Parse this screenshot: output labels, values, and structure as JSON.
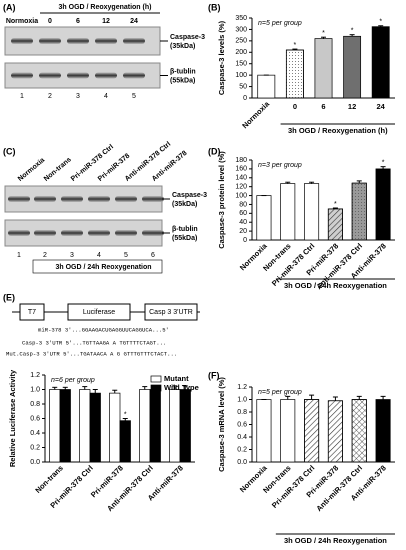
{
  "panel_labels": [
    "(A)",
    "(B)",
    "(C)",
    "(D)",
    "(E)",
    "(F)"
  ],
  "blots": [
    {
      "title": "3h OGD / Reoxygenation (h)",
      "lanes": [
        "Normoxia",
        "0",
        "6",
        "12",
        "24"
      ],
      "lane_numbers": [
        1,
        2,
        3,
        4,
        5
      ],
      "bands": [
        {
          "name": "Caspase-3",
          "size": "(35kDa)"
        },
        {
          "name": "β-tublin",
          "size": "(55kDa)"
        }
      ]
    },
    {
      "lanes": [
        "Normoxia",
        "Non-trans",
        "Pri-miR-378 Ctrl",
        "Pri-miR-378",
        "Anti-miR-378 Ctrl",
        "Anti-miR-378"
      ],
      "lane_numbers": [
        1,
        2,
        3,
        4,
        5,
        6
      ],
      "bands": [
        {
          "name": "Caspase-3",
          "size": "(35kDa)"
        },
        {
          "name": "β-tublin",
          "size": "(55kDa)"
        }
      ],
      "footer": "3h OGD / 24h Reoxygenation"
    }
  ],
  "construct": {
    "elements": [
      "T7",
      "Luciferase",
      "Casp 3 3'UTR"
    ],
    "sequences": [
      "miR-378 3'...GGAAGACUGAGGUUCAGGUCA...5'",
      "Casp-3 3'UTR 5'...TGTTAAGA A TGTTTTCTAGT...",
      "Mut.Casp-3 3'UTR 5'...TGATAACA A G GTTTGTTTCTACT..."
    ]
  },
  "chart_data": [
    {
      "type": "bar",
      "ylabel": "Caspase-3 levels (%)",
      "note": "n=5 per group",
      "xlabel": "3h OGD / Reoxygenation (h)",
      "categories": [
        "Normoxia",
        "0",
        "6",
        "12",
        "24"
      ],
      "values": [
        100,
        210,
        260,
        270,
        312
      ],
      "errors": [
        0,
        4,
        6,
        7,
        4
      ],
      "significance": [
        null,
        "*",
        "*",
        "*",
        "*"
      ],
      "colors": [
        "#ffffff",
        "#ffffff",
        "#c8c8c8",
        "#6f6f6f",
        "#000000"
      ],
      "patterns": [
        "none",
        "dots",
        "none",
        "none",
        "none"
      ],
      "ylim": [
        0,
        350
      ],
      "yticks": [
        0,
        50,
        100,
        150,
        200,
        250,
        300,
        350
      ]
    },
    {
      "type": "bar",
      "ylabel": "Caspase-3 protein level (%)",
      "note": "n=3 per group",
      "xlabel": "3h OGD / 24h Reoxygenation",
      "categories": [
        "Normoxia",
        "Non-trans",
        "Pri-miR-378 Ctrl",
        "Pri-miR-378",
        "Anti-miR-378 Ctrl",
        "Anti-miR-378"
      ],
      "values": [
        100,
        127,
        127,
        70,
        128,
        160
      ],
      "errors": [
        0,
        3,
        3,
        2,
        5,
        5
      ],
      "significance": [
        null,
        null,
        null,
        "*",
        null,
        "*"
      ],
      "colors": [
        "#ffffff",
        "#ffffff",
        "#ffffff",
        "#cfcfcf",
        "#9a9a9a",
        "#000000"
      ],
      "patterns": [
        "none",
        "none",
        "none",
        "hatch",
        "dots",
        "none"
      ],
      "ylim": [
        0,
        180
      ],
      "yticks": [
        0,
        20,
        40,
        60,
        80,
        100,
        120,
        140,
        160,
        180
      ]
    },
    {
      "type": "bar",
      "ylabel": "Relative Luciferase Activity",
      "note": "n=6 per group",
      "legend": "upper right",
      "categories": [
        "Non-trans",
        "Pri-miR-378 Ctrl",
        "Pri-miR-378",
        "Anti-miR-378 Ctrl",
        "Anti-miR-378"
      ],
      "series": [
        {
          "name": "Mutant",
          "color": "#ffffff",
          "values": [
            1.0,
            1.0,
            0.95,
            1.0,
            1.0
          ],
          "errors": [
            0.03,
            0.04,
            0.04,
            0.04,
            0.05
          ],
          "significance": [
            null,
            null,
            null,
            null,
            null
          ]
        },
        {
          "name": "Wild Type",
          "color": "#000000",
          "values": [
            1.0,
            0.95,
            0.57,
            1.0,
            1.0
          ],
          "errors": [
            0.03,
            0.05,
            0.03,
            0.05,
            0.05
          ],
          "significance": [
            null,
            null,
            "*",
            null,
            null
          ]
        }
      ],
      "ylim": [
        0,
        1.2
      ],
      "yticks": [
        {
          "value": 0,
          "label": "0.0"
        },
        0.2,
        0.4,
        0.6,
        0.8,
        {
          "value": 1,
          "label": "1.0"
        },
        1.2
      ]
    },
    {
      "type": "bar",
      "ylabel": "Caspase-3 mRNA level (%)",
      "note": "n=5 per group",
      "xlabel": "3h OGD / 24h Reoxygenation",
      "categories": [
        "Normoxia",
        "Non-trans",
        "Pri-miR-378 Ctrl",
        "Pri-miR-378",
        "Anti-miR-378 Ctrl",
        "Anti-miR-378"
      ],
      "values": [
        1.0,
        1.0,
        1.0,
        0.98,
        1.0,
        1.0
      ],
      "errors": [
        0,
        0.05,
        0.07,
        0.06,
        0.05,
        0.05
      ],
      "significance": [
        null,
        null,
        null,
        null,
        null,
        null
      ],
      "colors": [
        "#ffffff",
        "#ffffff",
        "#ffffff",
        "#ffffff",
        "#ffffff",
        "#000000"
      ],
      "patterns": [
        "none",
        "none",
        "hatch",
        "hatch",
        "cross",
        "none"
      ],
      "ylim": [
        0,
        1.2
      ],
      "yticks": [
        {
          "value": 0,
          "label": "0.0"
        },
        0.2,
        0.4,
        0.6,
        0.8,
        {
          "value": 1,
          "label": "1.0"
        },
        1.2
      ]
    }
  ]
}
